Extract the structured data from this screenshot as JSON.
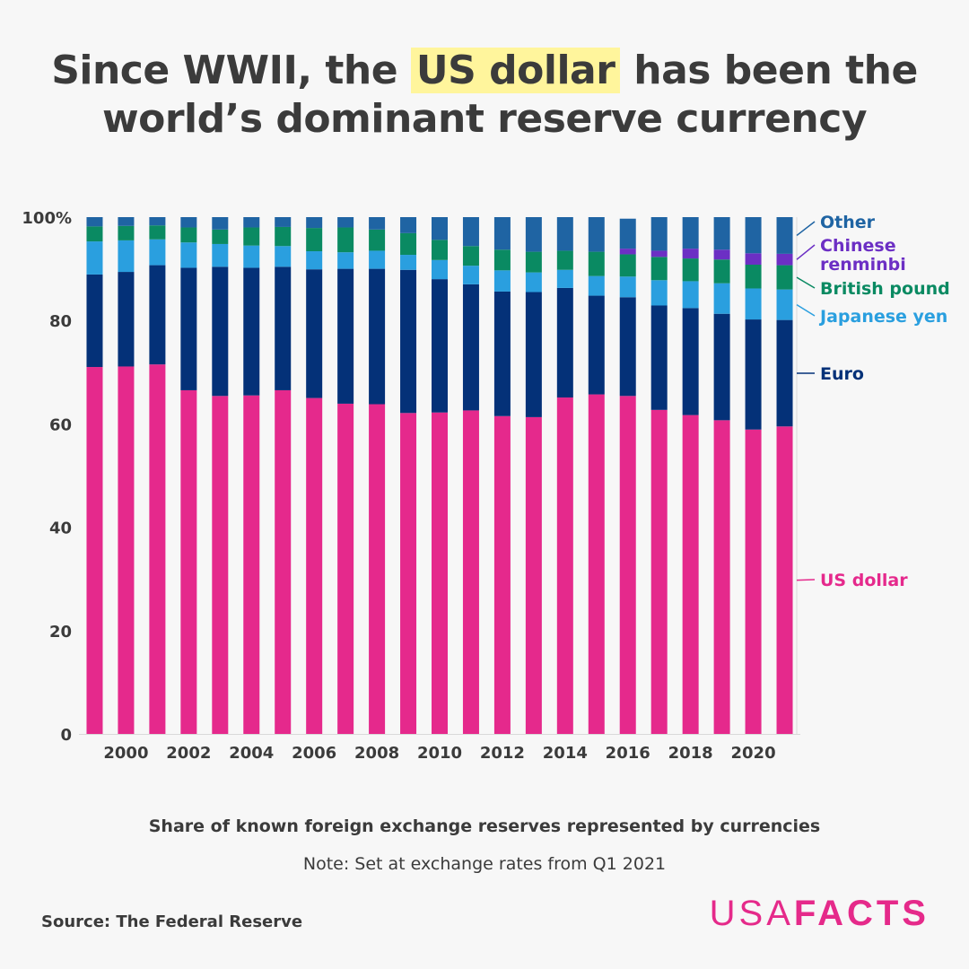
{
  "header": {
    "title_part1": "Since WWII, the ",
    "title_highlight": "US dollar",
    "title_part2": " has been the",
    "title_line2": "world’s dominant reserve currency"
  },
  "captions": {
    "subtitle": "Share of known foreign exchange reserves represented by currencies",
    "note": "Note: Set at exchange rates from Q1 2021"
  },
  "footer": {
    "source": "Source: The Federal Reserve",
    "logo_left": "USA",
    "logo_right": "FACTS"
  },
  "chart_data": {
    "type": "bar",
    "stacked": true,
    "x": [
      1999,
      2000,
      2001,
      2002,
      2003,
      2004,
      2005,
      2006,
      2007,
      2008,
      2009,
      2010,
      2011,
      2012,
      2013,
      2014,
      2015,
      2016,
      2017,
      2018,
      2019,
      2020,
      2021
    ],
    "xtick_labels": [
      "2000",
      "2002",
      "2004",
      "2006",
      "2008",
      "2010",
      "2012",
      "2014",
      "2016",
      "2018",
      "2020"
    ],
    "xtick_values": [
      2000,
      2002,
      2004,
      2006,
      2008,
      2010,
      2012,
      2014,
      2016,
      2018,
      2020
    ],
    "ylim": [
      0,
      100
    ],
    "yticks": [
      0,
      20,
      40,
      60,
      80,
      100
    ],
    "ytick_labels": [
      "0",
      "20",
      "40",
      "60",
      "80",
      "100%"
    ],
    "grid": false,
    "legend_placement": "right, labels aligned with top bar",
    "series": [
      {
        "name": "US dollar",
        "color": "#e5298c",
        "values": [
          71.0,
          71.1,
          71.5,
          66.5,
          65.4,
          65.5,
          66.5,
          65.0,
          63.9,
          63.8,
          62.1,
          62.2,
          62.6,
          61.5,
          61.3,
          65.1,
          65.7,
          65.4,
          62.7,
          61.7,
          60.7,
          58.9,
          59.5
        ]
      },
      {
        "name": "Euro",
        "color": "#043178",
        "values": [
          17.9,
          18.3,
          19.2,
          23.7,
          25.0,
          24.7,
          23.9,
          24.9,
          26.1,
          26.2,
          27.7,
          25.8,
          24.4,
          24.1,
          24.2,
          21.2,
          19.1,
          19.1,
          20.2,
          20.7,
          20.6,
          21.3,
          20.6
        ]
      },
      {
        "name": "Japanese yen",
        "color": "#2a9fdf",
        "values": [
          6.4,
          6.1,
          5.0,
          4.9,
          4.4,
          4.3,
          4.0,
          3.5,
          3.2,
          3.5,
          2.9,
          3.7,
          3.6,
          4.1,
          3.8,
          3.5,
          3.8,
          4.0,
          4.9,
          5.2,
          5.9,
          6.0,
          5.9
        ]
      },
      {
        "name": "British pound",
        "color": "#0a8a62",
        "values": [
          2.9,
          2.8,
          2.7,
          2.9,
          2.8,
          3.5,
          3.7,
          4.5,
          4.8,
          4.1,
          4.2,
          3.9,
          3.8,
          4.0,
          4.0,
          3.7,
          4.7,
          4.3,
          4.5,
          4.4,
          4.6,
          4.6,
          4.7
        ]
      },
      {
        "name": "Chinese renminbi",
        "color": "#6c2fc4",
        "values": [
          0,
          0,
          0,
          0,
          0,
          0,
          0,
          0,
          0,
          0,
          0,
          0,
          0,
          0,
          0,
          0,
          0,
          1.1,
          1.2,
          1.9,
          1.9,
          2.2,
          2.2
        ]
      },
      {
        "name": "Other",
        "color": "#1f64a3",
        "values": [
          1.8,
          1.7,
          1.6,
          2.0,
          2.4,
          2.0,
          1.9,
          2.1,
          2.0,
          2.4,
          3.1,
          4.4,
          5.6,
          6.3,
          6.7,
          6.5,
          6.7,
          5.8,
          6.5,
          6.1,
          6.3,
          7.0,
          7.1
        ]
      }
    ],
    "legend_labels": [
      {
        "series": "Other",
        "lines": [
          "Other"
        ]
      },
      {
        "series": "Chinese renminbi",
        "lines": [
          "Chinese",
          "renminbi"
        ]
      },
      {
        "series": "British pound",
        "lines": [
          "British pound"
        ]
      },
      {
        "series": "Japanese yen",
        "lines": [
          "Japanese yen"
        ]
      },
      {
        "series": "Euro",
        "lines": [
          "Euro"
        ]
      },
      {
        "series": "US dollar",
        "lines": [
          "US dollar"
        ]
      }
    ]
  }
}
